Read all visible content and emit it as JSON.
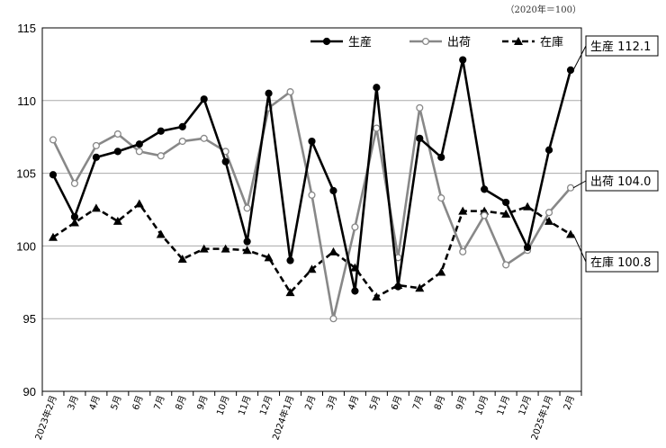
{
  "chart_data": {
    "type": "line",
    "unit_note": "（2020年＝100）",
    "ylim": [
      90,
      115
    ],
    "yticks": [
      "90",
      "95",
      "100",
      "105",
      "110",
      "115"
    ],
    "grid": true,
    "legend_position": "top-right",
    "categories": [
      "2023年2月",
      "3月",
      "4月",
      "5月",
      "6月",
      "7月",
      "8月",
      "9月",
      "10月",
      "11月",
      "12月",
      "2024年1月",
      "2月",
      "3月",
      "4月",
      "5月",
      "6月",
      "7月",
      "8月",
      "9月",
      "10月",
      "11月",
      "12月",
      "2025年1月",
      "2月"
    ],
    "series": [
      {
        "name": "生産",
        "color": "#000000",
        "dashed": false,
        "marker": "filled-circle",
        "values": [
          104.9,
          102.0,
          106.1,
          106.5,
          107.0,
          107.9,
          108.2,
          110.1,
          105.8,
          100.3,
          110.5,
          99.0,
          107.2,
          103.8,
          96.9,
          110.9,
          97.2,
          107.4,
          106.1,
          112.8,
          103.9,
          103.0,
          99.9,
          106.6,
          112.1
        ]
      },
      {
        "name": "出荷",
        "color": "#888888",
        "dashed": false,
        "marker": "open-circle",
        "values": [
          107.3,
          104.3,
          106.9,
          107.7,
          106.5,
          106.2,
          107.2,
          107.4,
          106.5,
          102.6,
          109.5,
          110.6,
          103.5,
          95.0,
          101.3,
          108.1,
          99.2,
          109.5,
          103.3,
          99.6,
          102.1,
          98.7,
          99.7,
          102.3,
          104.0
        ]
      },
      {
        "name": "在庫",
        "color": "#000000",
        "dashed": true,
        "marker": "filled-triangle",
        "values": [
          100.6,
          101.6,
          102.6,
          101.7,
          102.9,
          100.8,
          99.1,
          99.8,
          99.8,
          99.7,
          99.2,
          96.8,
          98.4,
          99.6,
          98.5,
          96.5,
          97.3,
          97.1,
          98.2,
          102.4,
          102.4,
          102.2,
          102.7,
          101.7,
          100.8
        ]
      }
    ],
    "callouts": [
      {
        "series": "生産",
        "label": "生産 112.1"
      },
      {
        "series": "出荷",
        "label": "出荷 104.0"
      },
      {
        "series": "在庫",
        "label": "在庫 100.8"
      }
    ]
  }
}
